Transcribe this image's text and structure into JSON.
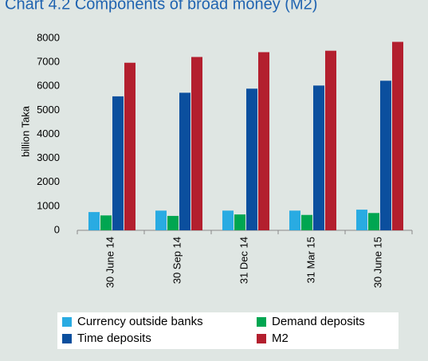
{
  "chart_data": {
    "type": "bar",
    "title": "Chart 4.2 Components of broad money (M2)",
    "y_label": "billion Taka",
    "categories": [
      "30 June 14",
      "30 Sep 14",
      "31 Dec 14",
      "31 Mar 15",
      "30 June 15"
    ],
    "series": [
      {
        "name": "Currency outside banks",
        "color": "#29abe2",
        "values": [
          760,
          820,
          820,
          820,
          860
        ]
      },
      {
        "name": "Demand deposits",
        "color": "#00a651",
        "values": [
          620,
          600,
          660,
          640,
          720
        ]
      },
      {
        "name": "Time deposits",
        "color": "#0b4f9e",
        "values": [
          5580,
          5730,
          5900,
          6030,
          6230
        ]
      },
      {
        "name": "M2",
        "color": "#b31f2e",
        "values": [
          6980,
          7220,
          7420,
          7480,
          7850
        ]
      }
    ],
    "ylim": [
      0,
      8000
    ],
    "yticks": [
      0,
      1000,
      2000,
      3000,
      4000,
      5000,
      6000,
      7000,
      8000
    ]
  }
}
